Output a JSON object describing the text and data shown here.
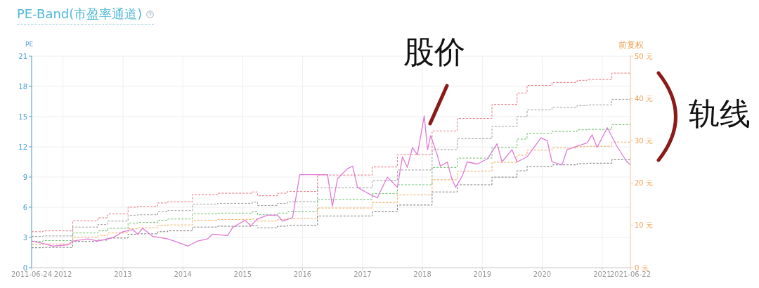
{
  "chart_data": {
    "type": "line",
    "title": "PE-Band(市盈率通道)",
    "ylabel": "PE",
    "y2label": "前复权",
    "xlim": [
      "2011-06-24",
      "2021-06-22"
    ],
    "xticks": [
      "2011-06-24",
      "2012",
      "2013",
      "2014",
      "2015",
      "2016",
      "2017",
      "2018",
      "2019",
      "2020",
      "2021",
      "2021-06-22"
    ],
    "ylim": [
      0,
      21
    ],
    "yticks": [
      0,
      3,
      6,
      9,
      12,
      15,
      18,
      21
    ],
    "y2lim": [
      0,
      50
    ],
    "y2ticks": [
      {
        "value": 0,
        "label": "0 元"
      },
      {
        "value": 10,
        "label": "10 元"
      },
      {
        "value": 20,
        "label": "20 元"
      },
      {
        "value": 30,
        "label": "30 元"
      },
      {
        "value": 40,
        "label": "40 元"
      },
      {
        "value": 50,
        "label": "50 元"
      }
    ],
    "grid": true,
    "annotations": [
      "股价",
      "轨线"
    ],
    "series": [
      {
        "type": "step",
        "axis": "y2",
        "color": "#e8707c",
        "line_style": "dashed",
        "x": [
          "2011-06-24",
          "2011-09",
          "2012-03",
          "2012-08",
          "2012-10",
          "2013-02",
          "2013-04",
          "2013-08",
          "2013-10",
          "2014-03",
          "2014-08",
          "2015-03",
          "2015-04",
          "2015-08",
          "2015-10",
          "2016-04",
          "2017-03",
          "2017-08",
          "2018-03",
          "2018-08",
          "2019-03",
          "2019-08",
          "2019-10",
          "2020-03",
          "2020-08",
          "2020-10",
          "2021-03",
          "2021-06-22"
        ],
        "values": [
          8.5,
          8.7,
          11.1,
          11.8,
          12.7,
          14.3,
          14.5,
          15.3,
          15.6,
          17.3,
          17.6,
          17.9,
          17.0,
          17.6,
          18.0,
          21.9,
          23.8,
          26.7,
          32.3,
          35.3,
          38.6,
          41.3,
          43.1,
          43.8,
          44.3,
          44.5,
          46.0,
          46.0
        ]
      },
      {
        "type": "step",
        "axis": "y2",
        "color": "#9a9a9a",
        "line_style": "dashed",
        "x": [
          "2011-06-24",
          "2011-09",
          "2012-03",
          "2012-08",
          "2012-10",
          "2013-02",
          "2013-04",
          "2013-08",
          "2013-10",
          "2014-03",
          "2014-08",
          "2015-03",
          "2015-04",
          "2015-08",
          "2015-10",
          "2016-04",
          "2017-03",
          "2017-08",
          "2018-03",
          "2018-08",
          "2019-03",
          "2019-08",
          "2019-10",
          "2020-03",
          "2020-08",
          "2020-10",
          "2021-03",
          "2021-06-22"
        ],
        "values": [
          7.4,
          7.5,
          9.6,
          10.2,
          11.0,
          12.4,
          12.5,
          13.2,
          13.5,
          15.0,
          15.2,
          15.5,
          14.7,
          15.2,
          15.6,
          18.9,
          20.6,
          23.1,
          27.9,
          30.5,
          33.4,
          35.7,
          37.3,
          37.9,
          38.3,
          38.5,
          39.8,
          39.8
        ]
      },
      {
        "type": "step",
        "axis": "y2",
        "color": "#6cbf6c",
        "line_style": "dashed",
        "x": [
          "2011-06-24",
          "2011-09",
          "2012-03",
          "2012-08",
          "2012-10",
          "2013-02",
          "2013-04",
          "2013-08",
          "2013-10",
          "2014-03",
          "2014-08",
          "2015-03",
          "2015-04",
          "2015-08",
          "2015-10",
          "2016-04",
          "2017-03",
          "2017-08",
          "2018-03",
          "2018-08",
          "2019-03",
          "2019-08",
          "2019-10",
          "2020-03",
          "2020-08",
          "2020-10",
          "2021-03",
          "2021-06-22"
        ],
        "values": [
          6.2,
          6.4,
          8.2,
          8.7,
          9.3,
          10.5,
          10.7,
          11.2,
          11.5,
          12.7,
          12.9,
          13.2,
          12.5,
          12.9,
          13.2,
          16.1,
          17.5,
          19.6,
          23.7,
          25.9,
          28.4,
          30.4,
          31.7,
          32.2,
          32.6,
          32.7,
          33.8,
          33.8
        ]
      },
      {
        "type": "step",
        "axis": "y2",
        "color": "#f2a65a",
        "line_style": "dashed",
        "x": [
          "2011-06-24",
          "2011-09",
          "2012-03",
          "2012-08",
          "2012-10",
          "2013-02",
          "2013-04",
          "2013-08",
          "2013-10",
          "2014-03",
          "2014-08",
          "2015-03",
          "2015-04",
          "2015-08",
          "2015-10",
          "2016-04",
          "2017-03",
          "2017-08",
          "2018-03",
          "2018-08",
          "2019-03",
          "2019-08",
          "2019-10",
          "2020-03",
          "2020-08",
          "2020-10",
          "2021-03",
          "2021-06-22"
        ],
        "values": [
          5.5,
          5.6,
          7.2,
          7.6,
          8.2,
          9.2,
          9.4,
          9.9,
          10.1,
          11.2,
          11.4,
          11.5,
          11.0,
          11.4,
          11.6,
          14.1,
          15.4,
          17.2,
          20.8,
          22.8,
          24.9,
          26.6,
          27.8,
          28.3,
          28.6,
          28.7,
          29.7,
          29.7
        ]
      },
      {
        "type": "step",
        "axis": "y2",
        "color": "#777777",
        "line_style": "dashed",
        "x": [
          "2011-06-24",
          "2011-09",
          "2012-03",
          "2012-08",
          "2012-10",
          "2013-02",
          "2013-04",
          "2013-08",
          "2013-10",
          "2014-03",
          "2014-08",
          "2015-03",
          "2015-04",
          "2015-08",
          "2015-10",
          "2016-04",
          "2017-03",
          "2017-08",
          "2018-03",
          "2018-08",
          "2019-03",
          "2019-08",
          "2019-10",
          "2020-03",
          "2020-08",
          "2020-10",
          "2021-03",
          "2021-06-22"
        ],
        "values": [
          4.7,
          4.8,
          6.2,
          6.5,
          7.0,
          7.9,
          8.0,
          8.5,
          8.7,
          9.6,
          9.8,
          9.9,
          9.4,
          9.8,
          10.0,
          12.2,
          13.2,
          14.8,
          17.9,
          19.6,
          21.4,
          22.9,
          23.9,
          24.3,
          24.6,
          24.7,
          25.5,
          25.5
        ]
      },
      {
        "type": "line",
        "axis": "y2",
        "color": "#e07ad6",
        "line_style": "solid",
        "x": [
          "2011-06-24",
          "2011-09",
          "2011-11",
          "2012-02",
          "2012-03",
          "2012-06",
          "2012-08",
          "2012-11",
          "2013-01",
          "2013-03",
          "2013-04",
          "2013-05",
          "2013-07",
          "2013-10",
          "2013-12",
          "2014-02",
          "2014-04",
          "2014-06",
          "2014-07",
          "2014-10",
          "2014-11",
          "2015-01-15",
          "2015-02-20",
          "2015-04",
          "2015-06",
          "2015-08",
          "2015-09",
          "2015-11",
          "2015-12-15",
          "2016-06",
          "2016-07",
          "2016-08",
          "2016-10",
          "2016-11",
          "2016-12",
          "2017-02",
          "2017-04",
          "2017-06",
          "2017-08",
          "2017-09",
          "2017-10",
          "2017-11",
          "2017-12",
          "2018-01-12",
          "2018-02",
          "2018-02-20",
          "2018-04",
          "2018-04-20",
          "2018-06",
          "2018-06-28",
          "2018-07-22",
          "2018-09",
          "2018-10",
          "2018-12",
          "2019-02",
          "2019-04",
          "2019-05",
          "2019-07",
          "2019-08",
          "2019-10",
          "2019-12-25",
          "2020-02",
          "2020-03",
          "2020-05",
          "2020-06",
          "2020-08",
          "2020-10",
          "2020-11",
          "2020-12",
          "2021-02",
          "2021-04",
          "2021-06-01",
          "2021-06-22"
        ],
        "values": [
          6.3,
          5.7,
          5.1,
          5.4,
          6.3,
          6.8,
          6.3,
          7.1,
          8.5,
          9.0,
          7.9,
          9.3,
          7.4,
          6.8,
          6.0,
          5.1,
          6.3,
          6.8,
          7.9,
          7.6,
          9.5,
          11.2,
          9.9,
          11.5,
          12.4,
          12.4,
          11.0,
          11.8,
          22.0,
          22.0,
          14.5,
          21.0,
          23.4,
          24.0,
          19.0,
          17.6,
          16.5,
          21.4,
          19.0,
          26.2,
          23.7,
          28.4,
          26.7,
          35.9,
          27.9,
          31.2,
          26.7,
          24.0,
          25.0,
          21.2,
          19.0,
          21.7,
          25.0,
          24.5,
          25.7,
          29.3,
          25.0,
          27.9,
          25.0,
          26.2,
          30.7,
          30.0,
          25.0,
          24.3,
          27.9,
          28.7,
          29.5,
          31.4,
          28.4,
          33.1,
          28.7,
          25.0,
          24.3
        ]
      }
    ]
  }
}
